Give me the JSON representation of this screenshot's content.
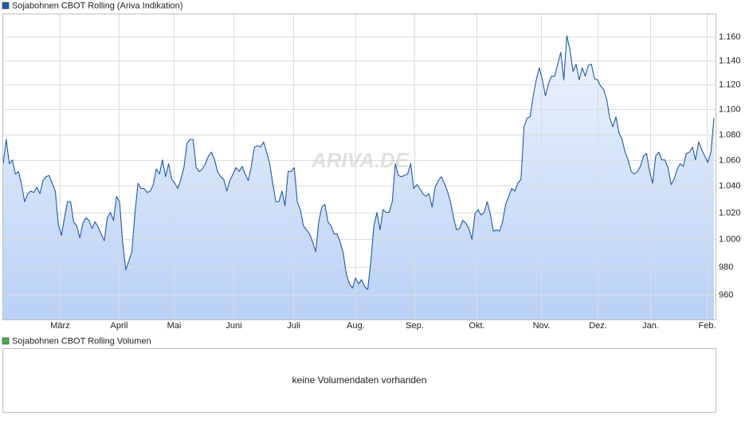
{
  "chart_data": {
    "type": "line",
    "series": [
      {
        "name": "Sojabohnen CBOT Rolling (Ariva Indikation)",
        "color": "#1f58b3",
        "values": [
          1057,
          1076,
          1057,
          1060,
          1049,
          1051,
          1041,
          1028,
          1034,
          1036,
          1035,
          1039,
          1034,
          1044,
          1047,
          1048,
          1042,
          1036,
          1011,
          1003,
          1016,
          1028,
          1028,
          1013,
          1010,
          1001,
          1012,
          1016,
          1014,
          1008,
          1013,
          1009,
          1004,
          999,
          1016,
          1020,
          1014,
          1032,
          1028,
          998,
          978,
          984,
          991,
          1019,
          1042,
          1038,
          1038,
          1035,
          1036,
          1041,
          1053,
          1049,
          1060,
          1047,
          1057,
          1045,
          1042,
          1038,
          1045,
          1054,
          1073,
          1076,
          1076,
          1054,
          1051,
          1053,
          1057,
          1063,
          1066,
          1060,
          1051,
          1047,
          1045,
          1036,
          1044,
          1049,
          1054,
          1051,
          1055,
          1049,
          1044,
          1055,
          1070,
          1071,
          1070,
          1074,
          1066,
          1057,
          1042,
          1028,
          1028,
          1036,
          1025,
          1051,
          1051,
          1054,
          1028,
          1022,
          1010,
          1007,
          1004,
          998,
          991,
          1013,
          1024,
          1026,
          1013,
          1010,
          1004,
          1004,
          998,
          990,
          975,
          968,
          965,
          972,
          968,
          971,
          966,
          964,
          984,
          1010,
          1020,
          1007,
          1022,
          1020,
          1020,
          1028,
          1057,
          1048,
          1047,
          1048,
          1049,
          1057,
          1038,
          1041,
          1038,
          1034,
          1032,
          1034,
          1024,
          1039,
          1044,
          1047,
          1042,
          1036,
          1028,
          1016,
          1007,
          1008,
          1014,
          1012,
          1008,
          1000,
          1019,
          1022,
          1018,
          1020,
          1028,
          1019,
          1006,
          1007,
          1006,
          1013,
          1026,
          1032,
          1038,
          1036,
          1042,
          1045,
          1086,
          1093,
          1094,
          1111,
          1124,
          1134,
          1124,
          1111,
          1121,
          1127,
          1127,
          1137,
          1147,
          1124,
          1161,
          1149,
          1131,
          1137,
          1124,
          1134,
          1127,
          1136,
          1137,
          1125,
          1124,
          1119,
          1116,
          1108,
          1093,
          1086,
          1094,
          1081,
          1076,
          1066,
          1060,
          1051,
          1049,
          1051,
          1055,
          1063,
          1065,
          1051,
          1042,
          1063,
          1066,
          1060,
          1060,
          1054,
          1041,
          1045,
          1053,
          1057,
          1055,
          1065,
          1066,
          1070,
          1060,
          1074,
          1068,
          1063,
          1058,
          1066,
          1093
        ]
      }
    ],
    "xlim": [
      0,
      232
    ],
    "xticks": [
      {
        "value": 18.5,
        "label": "März"
      },
      {
        "value": 37.7,
        "label": "April"
      },
      {
        "value": 55.7,
        "label": "Mai"
      },
      {
        "value": 75.2,
        "label": "Juni"
      },
      {
        "value": 94.7,
        "label": "Juli"
      },
      {
        "value": 115,
        "label": "Aug."
      },
      {
        "value": 134.2,
        "label": "Sep."
      },
      {
        "value": 154.5,
        "label": "Okt."
      },
      {
        "value": 175.5,
        "label": "Nov."
      },
      {
        "value": 194,
        "label": "Dez."
      },
      {
        "value": 211.2,
        "label": "Jan."
      },
      {
        "value": 229.6,
        "label": "Feb."
      }
    ],
    "ylim": [
      943,
      1180
    ],
    "yticks": [
      960,
      980,
      {
        "value": 1000,
        "label": "1.000"
      },
      {
        "value": 1020,
        "label": "1.020"
      },
      {
        "value": 1040,
        "label": "1.040"
      },
      {
        "value": 1060,
        "label": "1.060"
      },
      {
        "value": 1080,
        "label": "1.080"
      },
      {
        "value": 1100,
        "label": "1.100"
      },
      {
        "value": 1120,
        "label": "1.120"
      },
      {
        "value": 1140,
        "label": "1.140"
      },
      {
        "value": 1160,
        "label": "1.160"
      }
    ],
    "log_scale": true,
    "grid": true,
    "watermark": "ARIVA.DE"
  },
  "volume_panel": {
    "legend": "Sojabohnen CBOT Rolling Volumen",
    "color": "#44b04c",
    "message": "keine Volumendaten vorhanden"
  }
}
